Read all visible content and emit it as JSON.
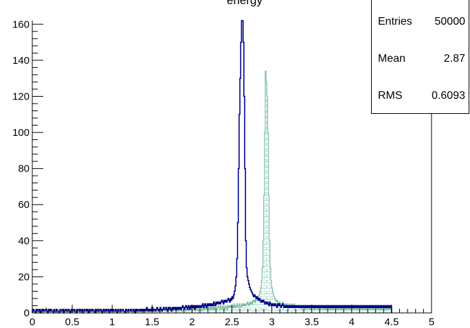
{
  "title": "energy",
  "stats": {
    "entries_label": "Entries",
    "entries_value": "50000",
    "mean_label": "Mean",
    "mean_value": "2.87",
    "rms_label": "RMS",
    "rms_value": "0.6093"
  },
  "colors": {
    "filled_hist_line": "#7fbf9f",
    "filled_hist_hatch": "#9ccfcf",
    "line_hist": "#00008b",
    "axis": "#000000"
  },
  "chart_data": {
    "type": "histogram",
    "title": "energy",
    "xlim": [
      0,
      5
    ],
    "ylim": [
      0,
      162
    ],
    "x_ticks": [
      "0",
      "0.5",
      "1",
      "1.5",
      "2",
      "2.5",
      "3",
      "3.5",
      "4",
      "4.5",
      "5"
    ],
    "y_ticks": [
      "0",
      "20",
      "40",
      "60",
      "80",
      "100",
      "120",
      "140",
      "160"
    ],
    "bin_width": 0.01,
    "series": [
      {
        "style": "filled-hatched",
        "range": [
          0,
          4.5
        ],
        "values": [
          2,
          1,
          0,
          1,
          2,
          1,
          1,
          2,
          0,
          1,
          1,
          2,
          1,
          0,
          2,
          1,
          1,
          3,
          1,
          1,
          2,
          1,
          0,
          1,
          2,
          1,
          1,
          2,
          1,
          0,
          1,
          2,
          1,
          1,
          2,
          1,
          0,
          1,
          2,
          1,
          1,
          2,
          1,
          1,
          0,
          2,
          1,
          1,
          2,
          1,
          1,
          2,
          1,
          0,
          1,
          2,
          1,
          1,
          2,
          1,
          1,
          2,
          1,
          0,
          1,
          2,
          1,
          1,
          2,
          1,
          1,
          2,
          1,
          0,
          1,
          2,
          1,
          1,
          2,
          1,
          1,
          2,
          1,
          0,
          1,
          2,
          1,
          1,
          2,
          1,
          1,
          2,
          1,
          0,
          1,
          2,
          1,
          1,
          2,
          1,
          1,
          2,
          1,
          0,
          1,
          2,
          1,
          1,
          2,
          1,
          1,
          2,
          1,
          1,
          2,
          1,
          0,
          1,
          2,
          1,
          1,
          2,
          1,
          1,
          2,
          1,
          0,
          1,
          2,
          1,
          1,
          2,
          1,
          1,
          2,
          1,
          1,
          2,
          1,
          0,
          2,
          1,
          1,
          2,
          1,
          2,
          1,
          1,
          2,
          1,
          3,
          1,
          2,
          1,
          1,
          2,
          1,
          1,
          2,
          1,
          2,
          1,
          1,
          2,
          1,
          2,
          3,
          1,
          2,
          1,
          2,
          1,
          2,
          3,
          1,
          2,
          1,
          2,
          1,
          2,
          3,
          1,
          2,
          1,
          2,
          1,
          2,
          3,
          1,
          2,
          1,
          2,
          3,
          2,
          1,
          2,
          3,
          2,
          1,
          2,
          3,
          2,
          1,
          2,
          3,
          2,
          1,
          2,
          3,
          2,
          1,
          2,
          3,
          2,
          1,
          2,
          3,
          2,
          4,
          2,
          3,
          2,
          4,
          2,
          3,
          2,
          4,
          2,
          3,
          2,
          4,
          2,
          3,
          2,
          3,
          4,
          3,
          2,
          4,
          3,
          2,
          4,
          3,
          2,
          4,
          3,
          2,
          4,
          3,
          4,
          3,
          4,
          3,
          4,
          3,
          5,
          3,
          4,
          3,
          5,
          4,
          3,
          5,
          4,
          3,
          5,
          4,
          5,
          4,
          5,
          4,
          5,
          6,
          5,
          4,
          6,
          5,
          6,
          5,
          7,
          6,
          7,
          6,
          8,
          7,
          9,
          8,
          10,
          12,
          14,
          18,
          25,
          40,
          65,
          100,
          134,
          128,
          120,
          100,
          65,
          40,
          25,
          18,
          14,
          12,
          10,
          9,
          8,
          7,
          6,
          7,
          6,
          5,
          6,
          5,
          4,
          5,
          6,
          5,
          4,
          5,
          4,
          5,
          4,
          3,
          5,
          4,
          3,
          5,
          4,
          3,
          5,
          4,
          3,
          4,
          3,
          4,
          3,
          4,
          3,
          4,
          2,
          3,
          4,
          3,
          2,
          4,
          3,
          2,
          4,
          3,
          2,
          3,
          2,
          4,
          3,
          2,
          3,
          2,
          4,
          3,
          2,
          3,
          2,
          3,
          2,
          4,
          3,
          2,
          3,
          2,
          3,
          2,
          3,
          2,
          3,
          2,
          3,
          2,
          3,
          2,
          3,
          2,
          3,
          2,
          3,
          2,
          3,
          2,
          3,
          2,
          3,
          2,
          3,
          2,
          3,
          2,
          3,
          2,
          3,
          2,
          3,
          2,
          3,
          2,
          3,
          2,
          3,
          2,
          3,
          2,
          3,
          2,
          3,
          2,
          3,
          2,
          3,
          2,
          3,
          2,
          3,
          2,
          3,
          2,
          3,
          2,
          3,
          2,
          3,
          2,
          3,
          2,
          3,
          2,
          3,
          2,
          3,
          2,
          3,
          2,
          3,
          2,
          3,
          2,
          3,
          2,
          3,
          2,
          3,
          2,
          3,
          2,
          3,
          2
        ]
      },
      {
        "style": "line",
        "range": [
          0,
          4.5
        ],
        "values": [
          1,
          2,
          1,
          1,
          0,
          2,
          1,
          1,
          2,
          1,
          0,
          1,
          2,
          1,
          2,
          1,
          1,
          2,
          1,
          0,
          1,
          2,
          1,
          2,
          1,
          1,
          0,
          2,
          1,
          1,
          2,
          1,
          1,
          0,
          1,
          2,
          1,
          1,
          2,
          0,
          1,
          1,
          2,
          1,
          1,
          2,
          1,
          0,
          1,
          2,
          1,
          1,
          2,
          1,
          1,
          0,
          2,
          1,
          1,
          2,
          1,
          1,
          2,
          0,
          1,
          2,
          1,
          1,
          2,
          1,
          0,
          1,
          2,
          1,
          1,
          2,
          1,
          1,
          0,
          2,
          1,
          1,
          2,
          1,
          1,
          2,
          1,
          0,
          1,
          2,
          1,
          1,
          2,
          1,
          1,
          2,
          0,
          1,
          2,
          1,
          1,
          2,
          1,
          1,
          2,
          1,
          0,
          2,
          1,
          1,
          2,
          1,
          1,
          2,
          1,
          1,
          0,
          2,
          1,
          1,
          2,
          1,
          1,
          2,
          1,
          1,
          2,
          1,
          0,
          2,
          1,
          2,
          1,
          1,
          2,
          1,
          2,
          1,
          2,
          1,
          2,
          1,
          2,
          3,
          1,
          2,
          1,
          2,
          1,
          2,
          3,
          1,
          2,
          2,
          1,
          2,
          3,
          2,
          1,
          2,
          3,
          2,
          1,
          2,
          3,
          2,
          2,
          3,
          2,
          1,
          3,
          2,
          3,
          2,
          1,
          3,
          2,
          3,
          2,
          3,
          2,
          3,
          2,
          3,
          2,
          3,
          2,
          3,
          4,
          3,
          2,
          3,
          4,
          3,
          2,
          4,
          3,
          2,
          4,
          3,
          4,
          3,
          4,
          2,
          4,
          3,
          4,
          3,
          4,
          3,
          4,
          3,
          4,
          5,
          3,
          4,
          5,
          4,
          3,
          5,
          4,
          5,
          4,
          5,
          4,
          5,
          4,
          6,
          5,
          4,
          6,
          5,
          6,
          5,
          6,
          5,
          6,
          7,
          6,
          5,
          7,
          6,
          7,
          6,
          7,
          8,
          7,
          6,
          8,
          7,
          9,
          8,
          10,
          12,
          15,
          20,
          30,
          50,
          80,
          110,
          130,
          150,
          162,
          162,
          150,
          120,
          80,
          40,
          25,
          20,
          18,
          16,
          14,
          13,
          12,
          11,
          10,
          9,
          10,
          9,
          8,
          9,
          8,
          7,
          8,
          7,
          6,
          7,
          6,
          7,
          6,
          5,
          6,
          5,
          6,
          5,
          4,
          6,
          5,
          4,
          5,
          4,
          5,
          4,
          5,
          4,
          3,
          5,
          4,
          5,
          4,
          3,
          4,
          5,
          4,
          3,
          4,
          3,
          4,
          3,
          4,
          3,
          4,
          3,
          4,
          3,
          4,
          3,
          4,
          3,
          4,
          3,
          4,
          3,
          4,
          3,
          4,
          3,
          4,
          3,
          4,
          3,
          4,
          3,
          4,
          3,
          4,
          3,
          4,
          3,
          4,
          3,
          4,
          3,
          4,
          3,
          4,
          3,
          4,
          3,
          4,
          3,
          4,
          3,
          4,
          3,
          4,
          3,
          4,
          3,
          4,
          3,
          4,
          3,
          4,
          3,
          4,
          3,
          4,
          3,
          4,
          3,
          4,
          3,
          4,
          3,
          4,
          3,
          4,
          3,
          4,
          3,
          4,
          3,
          4,
          3,
          4,
          3,
          4,
          3,
          4,
          3,
          4,
          3,
          4,
          3,
          4,
          3,
          4,
          3,
          4,
          3,
          4,
          3,
          4,
          3,
          4,
          3,
          4,
          3,
          4,
          3,
          4,
          3,
          4,
          3,
          4,
          3,
          4,
          3,
          4,
          3,
          4,
          3,
          4,
          3,
          4,
          3,
          4,
          3,
          4,
          3,
          4,
          3,
          4,
          3,
          4,
          3,
          4,
          3
        ]
      }
    ]
  }
}
